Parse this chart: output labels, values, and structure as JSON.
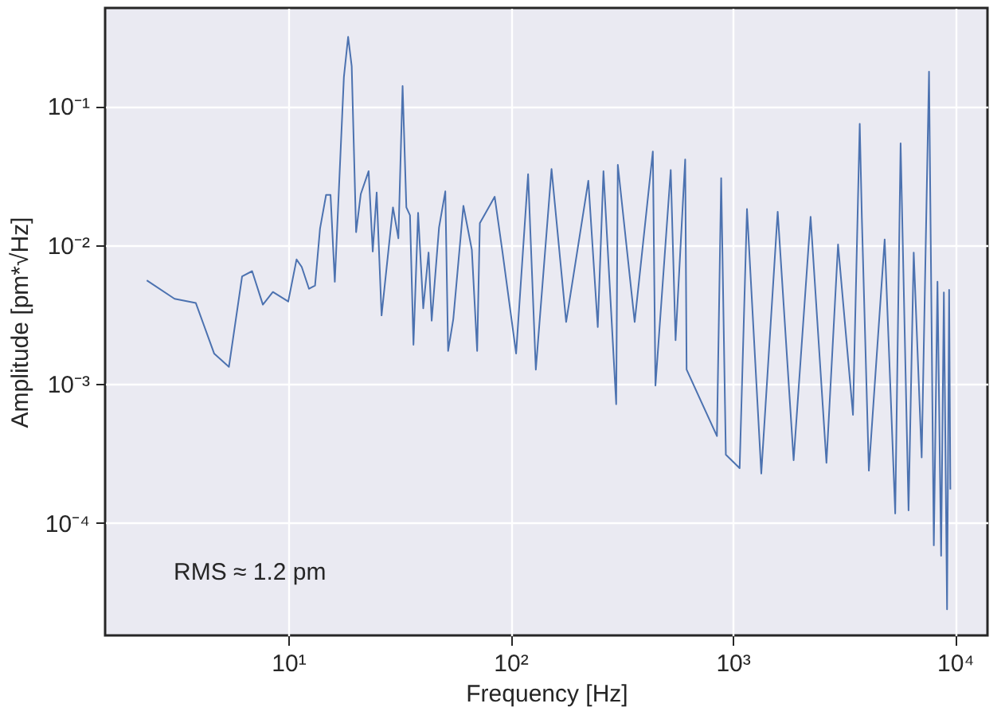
{
  "chart_data": {
    "type": "line",
    "xlabel": "Frequency [Hz]",
    "ylabel": "Amplitude [pm*√Hz]",
    "log": "xy",
    "grid": true,
    "marker": "none",
    "line_style": "solid",
    "xlim": [
      1.5,
      14000
    ],
    "ylim": [
      1.55e-05,
      0.51
    ],
    "xticks": [
      {
        "value": 10,
        "label": "10¹"
      },
      {
        "value": 100,
        "label": "10²"
      },
      {
        "value": 1000,
        "label": "10³"
      },
      {
        "value": 10000,
        "label": "10⁴"
      }
    ],
    "yticks": [
      {
        "value": 0.0001,
        "label": "10⁻⁴"
      },
      {
        "value": 0.001,
        "label": "10⁻³"
      },
      {
        "value": 0.01,
        "label": "10⁻²"
      },
      {
        "value": 0.1,
        "label": "10⁻¹"
      }
    ],
    "annotations": [
      "RMS ≈ 1.2 pm"
    ],
    "series": [
      {
        "color": "#4c72b0",
        "x": [
          2.31,
          3.08,
          3.84,
          4.64,
          5.41,
          6.2,
          6.88,
          7.69,
          8.53,
          10.0,
          10.9,
          11.5,
          12.4,
          13.2,
          13.9,
          14.8,
          15.5,
          16.2,
          17.8,
          18.6,
          19.3,
          20.2,
          21.2,
          23.0,
          24.0,
          25.0,
          26.3,
          29.6,
          31.3,
          32.7,
          34.0,
          35.3,
          36.6,
          38.4,
          40.5,
          42.8,
          44.2,
          47.7,
          50.9,
          52.4,
          55.3,
          61.4,
          67.0,
          70.8,
          72.8,
          84.9,
          92.1,
          106,
          120,
          130,
          153,
          178,
          224,
          247,
          262,
          299,
          304,
          362,
          437,
          449,
          526,
          553,
          611,
          620,
          849,
          887,
          931,
          1074,
          1159,
          1344,
          1593,
          1879,
          2240,
          2640,
          2977,
          3475,
          3727,
          3810,
          4096,
          4826,
          5383,
          5692,
          6180,
          6520,
          7080,
          7640,
          8030,
          8340,
          8660,
          8910,
          9210,
          9410,
          9530
        ],
        "values": [
          0.00558,
          0.00411,
          0.00383,
          0.00166,
          0.00133,
          0.00596,
          0.0065,
          0.00373,
          0.0046,
          0.00393,
          0.00789,
          0.00697,
          0.00485,
          0.00512,
          0.01315,
          0.023,
          0.023,
          0.00545,
          0.1626,
          0.316,
          0.194,
          0.0124,
          0.0233,
          0.0341,
          0.009,
          0.0239,
          0.00312,
          0.0187,
          0.0112,
          0.14,
          0.0187,
          0.0164,
          0.00192,
          0.0171,
          0.00351,
          0.00885,
          0.00286,
          0.0134,
          0.0244,
          0.00173,
          0.00294,
          0.0192,
          0.00925,
          0.00173,
          0.0144,
          0.0223,
          0.00885,
          0.00166,
          0.0324,
          0.00127,
          0.0353,
          0.0028,
          0.0291,
          0.00257,
          0.0341,
          0.000716,
          0.0379,
          0.0028,
          0.0473,
          0.000975,
          0.0347,
          0.00207,
          0.0414,
          0.00127,
          0.000422,
          0.0304,
          0.00031,
          0.000248,
          0.0182,
          0.000227,
          0.0174,
          0.000283,
          0.016,
          0.000271,
          0.0101,
          0.0006,
          0.0748,
          0.0157,
          0.000238,
          0.011,
          0.000117,
          0.054,
          0.000123,
          0.00885,
          0.000296,
          0.1774,
          6.9e-05,
          0.00545,
          5.8e-05,
          0.00457,
          2.39e-05,
          0.00477,
          0.000174
        ]
      }
    ]
  }
}
